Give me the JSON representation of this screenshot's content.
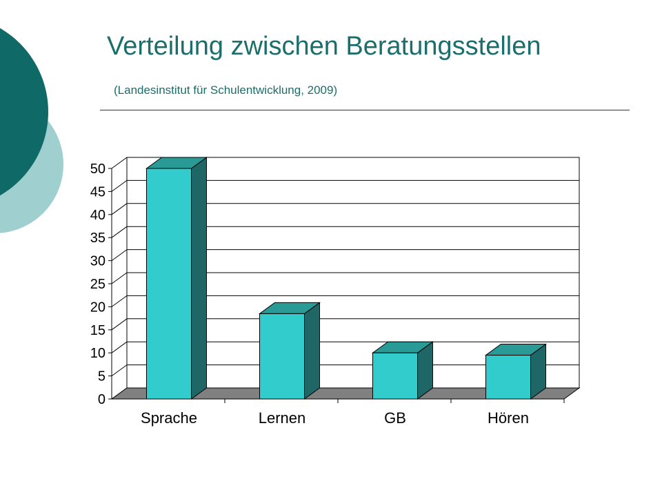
{
  "title": "Verteilung zwischen Beratungsstellen",
  "subtitle": "(Landesinstitut für Schulentwicklung, 2009)",
  "colors": {
    "title": "#1a6e6b",
    "bar_front": "#33cccc",
    "bar_side": "#1f6666",
    "bar_top": "#2a9a96",
    "floor": "#808080",
    "deco_dark": "#0f6a67",
    "deco_light": "#9fd0cf"
  },
  "chart_data": {
    "type": "bar",
    "categories": [
      "Sprache",
      "Lernen",
      "GB",
      "Hören"
    ],
    "values": [
      50,
      18.5,
      10,
      9.5
    ],
    "ylim": [
      0,
      50
    ],
    "yticks": [
      "0",
      "5",
      "10",
      "15",
      "20",
      "25",
      "30",
      "35",
      "40",
      "45",
      "50"
    ],
    "grid": true,
    "legend": "none"
  }
}
